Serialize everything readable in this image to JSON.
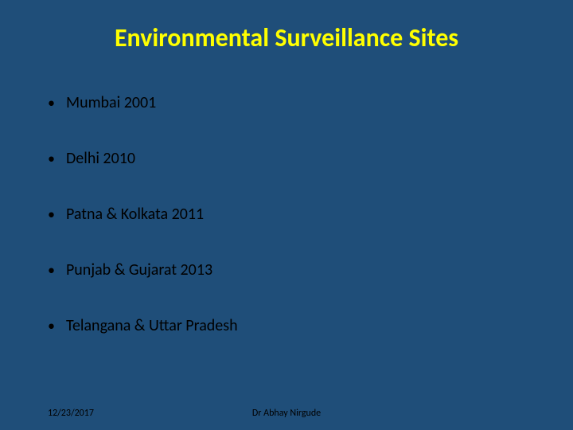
{
  "slide": {
    "title": "Environmental Surveillance Sites",
    "background_color": "#1f4e79",
    "title_color": "#ffff00",
    "title_fontsize": 32,
    "body_color": "#000000",
    "body_fontsize": 20,
    "bullets": [
      "Mumbai 2001",
      "Delhi 2010",
      "Patna & Kolkata 2011",
      "Punjab & Gujarat 2013",
      "Telangana & Uttar Pradesh"
    ],
    "footer": {
      "date": "12/23/2017",
      "author": "Dr Abhay Nirgude"
    }
  }
}
